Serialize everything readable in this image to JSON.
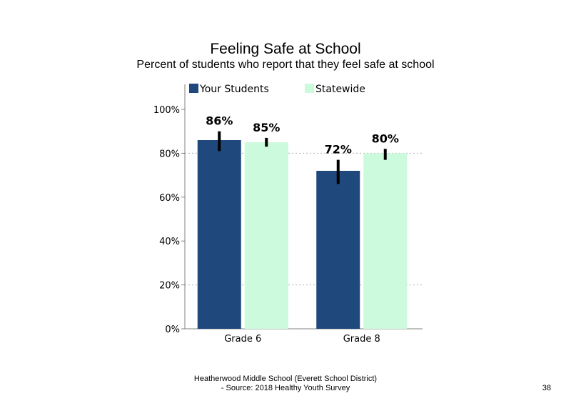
{
  "chart_data": {
    "type": "bar",
    "title": "Feeling  Safe at School",
    "subtitle": "Percent of students who report that they feel safe at school",
    "categories": [
      "Grade 6",
      "Grade 8"
    ],
    "series": [
      {
        "name": "Your Students",
        "color": "#1f497d",
        "values": [
          86,
          72
        ],
        "labels": [
          "86%",
          "72%"
        ],
        "error_low": [
          81,
          66
        ],
        "error_high": [
          90,
          77
        ]
      },
      {
        "name": "Statewide",
        "color": "#ccfadc",
        "values": [
          85,
          80
        ],
        "labels": [
          "85%",
          "80%"
        ],
        "error_low": [
          83,
          77
        ],
        "error_high": [
          87,
          82
        ]
      }
    ],
    "yticks": [
      0,
      20,
      40,
      60,
      80,
      100
    ],
    "ytick_labels": [
      "0%",
      "20%",
      "40%",
      "60%",
      "80%",
      "100%"
    ],
    "ylim": [
      0,
      100
    ],
    "gridlines": [
      20,
      80
    ],
    "legend": "top"
  },
  "footer": {
    "line1": "Heatherwood Middle School (Everett School District)",
    "line2": "- Source: 2018 Healthy  Youth Survey"
  },
  "page_number": "38"
}
